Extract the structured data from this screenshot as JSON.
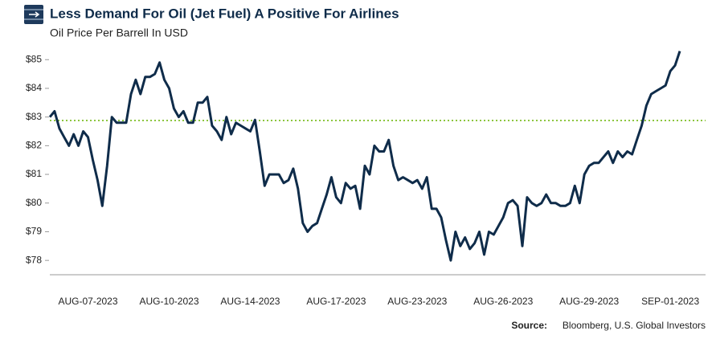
{
  "chart_data": {
    "type": "line",
    "title": "Less Demand For Oil (Jet Fuel) A Positive For Airlines",
    "subtitle": "Oil Price Per Barrell In USD",
    "source_label": "Source:",
    "source": "Bloomberg, U.S. Global Investors",
    "categories": [
      null,
      null,
      null,
      null,
      null,
      null,
      null,
      null,
      "AUG-07-2023",
      null,
      null,
      null,
      null,
      null,
      null,
      null,
      null,
      null,
      null,
      null,
      null,
      null,
      null,
      null,
      null,
      "AUG-10-2023",
      null,
      null,
      null,
      null,
      null,
      null,
      null,
      null,
      null,
      null,
      null,
      null,
      null,
      null,
      null,
      null,
      "AUG-14-2023",
      null,
      null,
      null,
      null,
      null,
      null,
      null,
      null,
      null,
      null,
      null,
      null,
      null,
      null,
      null,
      null,
      null,
      "AUG-17-2023",
      null,
      null,
      null,
      null,
      null,
      null,
      null,
      null,
      null,
      null,
      null,
      null,
      null,
      null,
      null,
      null,
      "AUG-23-2023",
      null,
      null,
      null,
      null,
      null,
      null,
      null,
      null,
      null,
      null,
      null,
      null,
      null,
      null,
      null,
      null,
      null,
      "AUG-26-2023",
      null,
      null,
      null,
      null,
      null,
      null,
      null,
      null,
      null,
      null,
      null,
      null,
      null,
      null,
      null,
      null,
      null,
      "AUG-29-2023",
      null,
      null,
      null,
      null,
      null,
      null,
      null,
      null,
      null,
      null,
      null,
      null,
      null,
      null,
      null,
      null,
      "SEP-01-2023",
      null,
      null
    ],
    "series": [
      {
        "color": "#0f2c4a",
        "values": [
          83.0,
          83.2,
          82.6,
          82.3,
          82.0,
          82.4,
          82.0,
          82.5,
          82.3,
          81.5,
          80.8,
          79.9,
          81.3,
          83.0,
          82.8,
          82.8,
          82.8,
          83.8,
          84.3,
          83.8,
          84.4,
          84.4,
          84.5,
          84.9,
          84.3,
          84.0,
          83.3,
          83.0,
          83.2,
          82.8,
          82.8,
          83.5,
          83.5,
          83.7,
          82.7,
          82.5,
          82.2,
          83.0,
          82.4,
          82.8,
          82.7,
          82.6,
          82.5,
          82.9,
          81.8,
          80.6,
          81.0,
          81.0,
          81.0,
          80.7,
          80.8,
          81.2,
          80.5,
          79.3,
          79.0,
          79.2,
          79.3,
          79.8,
          80.3,
          80.9,
          80.2,
          80.0,
          80.7,
          80.5,
          80.6,
          79.8,
          81.3,
          81.0,
          82.0,
          81.8,
          81.8,
          82.2,
          81.3,
          80.8,
          80.9,
          80.8,
          80.7,
          80.8,
          80.5,
          80.9,
          79.8,
          79.8,
          79.5,
          78.7,
          78.0,
          79.0,
          78.5,
          78.8,
          78.4,
          78.6,
          79.0,
          78.2,
          79.0,
          78.9,
          79.2,
          79.5,
          80.0,
          80.1,
          79.9,
          78.5,
          80.2,
          80.0,
          79.9,
          80.0,
          80.3,
          80.0,
          80.0,
          79.9,
          79.9,
          80.0,
          80.6,
          80.0,
          81.0,
          81.3,
          81.4,
          81.4,
          81.6,
          81.8,
          81.4,
          81.8,
          81.6,
          81.8,
          81.7,
          82.2,
          82.7,
          83.4,
          83.8,
          83.9,
          84.0,
          84.1,
          84.6,
          84.8,
          85.3
        ]
      }
    ],
    "hline": {
      "value": 82.88,
      "color": "#8dc63f"
    },
    "ylim": [
      77.5,
      85.4
    ],
    "yticks": [
      {
        "value": 78,
        "label": "$78"
      },
      {
        "value": 79,
        "label": "$79"
      },
      {
        "value": 80,
        "label": "$80"
      },
      {
        "value": 81,
        "label": "$81"
      },
      {
        "value": 82,
        "label": "$82"
      },
      {
        "value": 83,
        "label": "$83"
      },
      {
        "value": 84,
        "label": "$84"
      },
      {
        "value": 85,
        "label": "$85"
      }
    ]
  }
}
